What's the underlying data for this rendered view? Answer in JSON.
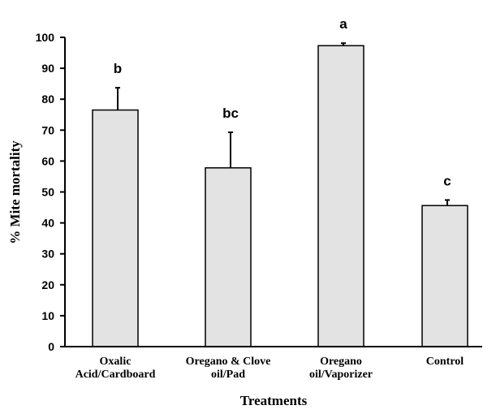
{
  "chart_data": {
    "type": "bar",
    "categories": [
      [
        "Oxalic",
        "Acid/Cardboard"
      ],
      [
        "Oregano & Clove",
        "oil/Pad"
      ],
      [
        "Oregano",
        "oil/Vaporizer"
      ],
      [
        "Control"
      ]
    ],
    "values": [
      76.5,
      57.8,
      97.3,
      45.6
    ],
    "error_bars": [
      7.2,
      11.5,
      0.8,
      1.8
    ],
    "significance_labels": [
      "b",
      "bc",
      "a",
      "c"
    ],
    "xlabel": "Treatments",
    "ylabel": "% Mite mortality",
    "ylim": [
      0,
      100
    ],
    "yticks": [
      0,
      10,
      20,
      30,
      40,
      50,
      60,
      70,
      80,
      90,
      100
    ],
    "grid": false,
    "colors": {
      "bar_fill": "#e3e3e3",
      "bar_stroke": "#000000"
    }
  }
}
